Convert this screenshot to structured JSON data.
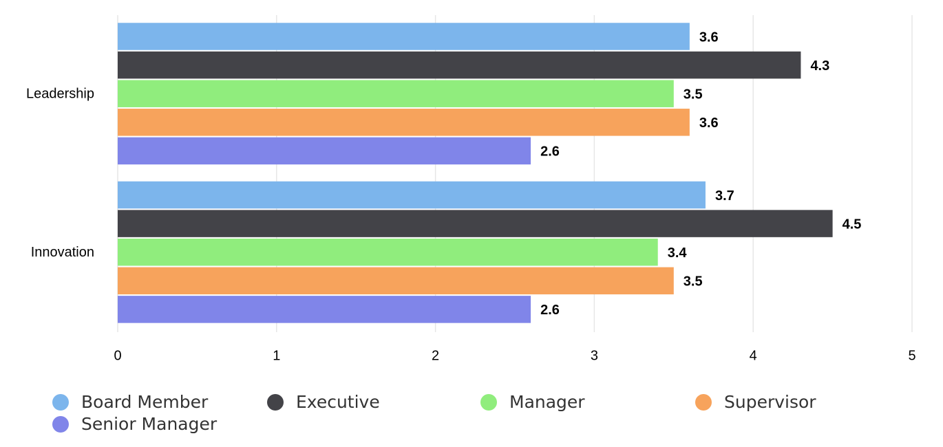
{
  "chart_data": {
    "type": "bar",
    "orientation": "horizontal",
    "categories": [
      "Leadership",
      "Innovation"
    ],
    "series": [
      {
        "name": "Board Member",
        "color": "#7cb5ec",
        "values": [
          3.6,
          3.7
        ]
      },
      {
        "name": "Executive",
        "color": "#434348",
        "values": [
          4.3,
          4.5
        ]
      },
      {
        "name": "Manager",
        "color": "#90ed7d",
        "values": [
          3.5,
          3.4
        ]
      },
      {
        "name": "Supervisor",
        "color": "#f7a35c",
        "values": [
          3.6,
          3.5
        ]
      },
      {
        "name": "Senior Manager",
        "color": "#8085e9",
        "values": [
          2.6,
          2.6
        ]
      }
    ],
    "xlim": [
      0,
      5
    ],
    "xticks": [
      0,
      1,
      2,
      3,
      4,
      5
    ],
    "grid": true,
    "legend": "bottom"
  }
}
